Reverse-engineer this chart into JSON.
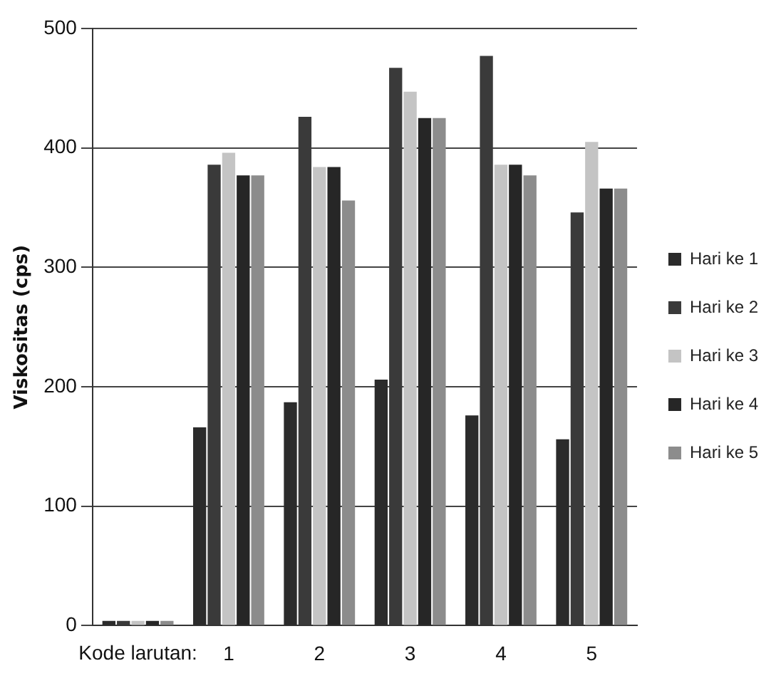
{
  "chart_data": {
    "type": "bar",
    "ylabel": "Viskositas (cps)",
    "xlabel": "Kode larutan:",
    "categories": [
      null,
      "1",
      "2",
      "3",
      "4",
      "5"
    ],
    "series": [
      {
        "name": "Hari ke 1",
        "color": "#2b2b2b",
        "values": [
          4,
          166,
          187,
          206,
          176,
          156
        ]
      },
      {
        "name": "Hari ke 2",
        "color": "#3a3a3a",
        "values": [
          4,
          386,
          426,
          467,
          477,
          346
        ]
      },
      {
        "name": "Hari ke 3",
        "color": "#c4c4c4",
        "values": [
          4,
          396,
          384,
          447,
          386,
          405
        ]
      },
      {
        "name": "Hari ke 4",
        "color": "#262626",
        "values": [
          4,
          377,
          384,
          425,
          386,
          366
        ]
      },
      {
        "name": "Hari ke 5",
        "color": "#8c8c8c",
        "values": [
          4,
          377,
          356,
          425,
          377,
          366
        ]
      }
    ],
    "ylim": [
      0,
      500
    ],
    "yticks": [
      0,
      100,
      200,
      300,
      400,
      500
    ],
    "grid": "y",
    "legend": "right"
  }
}
